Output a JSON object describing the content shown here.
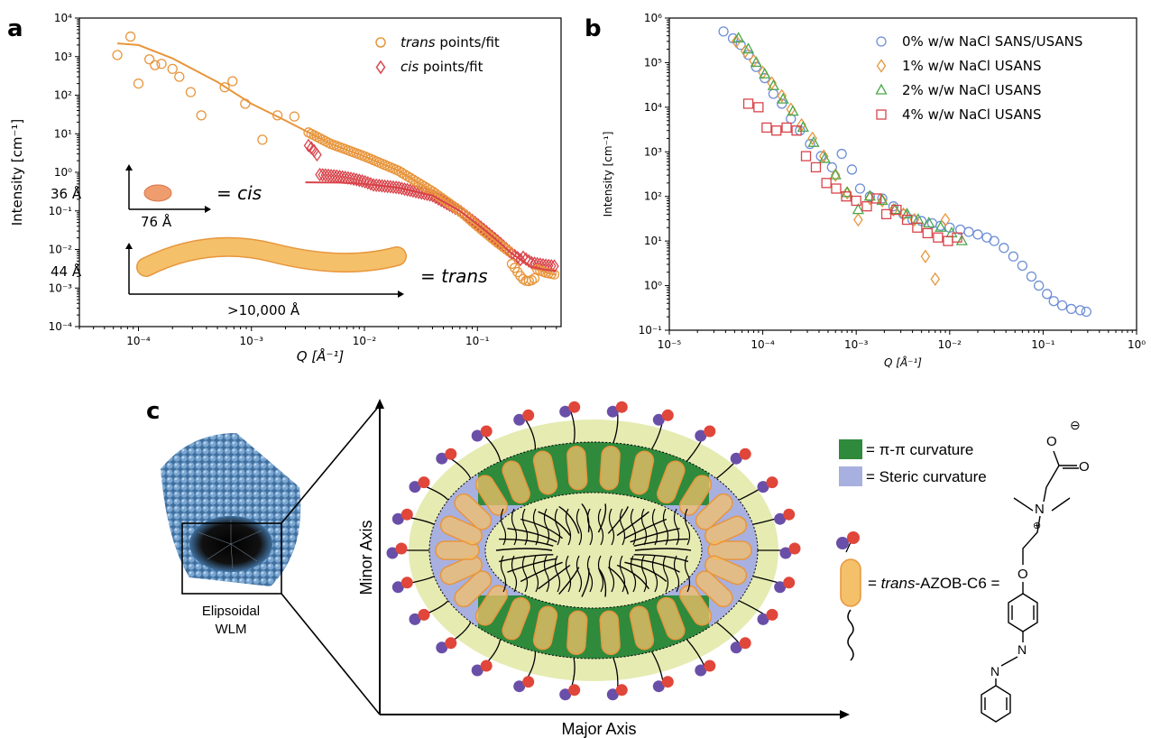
{
  "colors": {
    "trans": "#e8963c",
    "cis": "#d9434a",
    "nacl0": "#6f8fd6",
    "nacl1": "#e8963c",
    "nacl2": "#4aa84a",
    "nacl4": "#d9434a",
    "pi_pi": "#2f8a3c",
    "steric": "#a8b0e0",
    "shell": "#e6ebb2",
    "rod": "#f5c06a"
  },
  "panels": {
    "a": "a",
    "b": "b",
    "c": "c"
  },
  "chart_data": [
    {
      "type": "scatter",
      "panel": "a",
      "xscale": "log",
      "yscale": "log",
      "xlim": [
        3e-05,
        0.55
      ],
      "ylim": [
        0.0001,
        10000.0
      ],
      "xlabel": "Q [Å⁻¹]",
      "ylabel": "Intensity [cm⁻¹]",
      "xticks": [
        "10⁻⁴",
        "10⁻³",
        "10⁻²",
        "10⁻¹"
      ],
      "yticks": [
        "10⁻⁴",
        "10⁻³",
        "10⁻²",
        "10⁻¹",
        "10⁰",
        "10¹",
        "10²",
        "10³",
        "10⁴"
      ],
      "legend_position": "top-right",
      "series": [
        {
          "name": "trans points/fit",
          "marker": "circle",
          "points_x": [
            6.5e-05,
            8.5e-05,
            0.0001,
            0.000125,
            0.00014,
            0.00016,
            0.0002,
            0.00023,
            0.00029,
            0.00036,
            0.00058,
            0.00068,
            0.00088,
            0.00125,
            0.0017,
            0.0024
          ],
          "points_y": [
            1100,
            3300,
            200,
            850,
            600,
            650,
            480,
            300,
            120,
            30,
            160,
            230,
            60,
            7,
            30,
            28
          ],
          "fit_x": [
            6.5e-05,
            0.0001,
            0.0002,
            0.0005,
            0.001,
            0.002,
            0.005,
            0.01,
            0.02,
            0.04,
            0.07,
            0.1,
            0.15,
            0.2,
            0.25,
            0.3,
            0.4,
            0.5
          ],
          "fit_y": [
            2200,
            2000,
            900,
            220,
            60,
            22,
            5.5,
            2.6,
            1.1,
            0.32,
            0.1,
            0.04,
            0.015,
            0.008,
            0.005,
            0.0035,
            0.0025,
            0.0022
          ]
        },
        {
          "name": "cis points/fit",
          "marker": "diamond",
          "fit_x": [
            0.003,
            0.006,
            0.01,
            0.02,
            0.04,
            0.07,
            0.1,
            0.15,
            0.2,
            0.25,
            0.3,
            0.4,
            0.5
          ],
          "fit_y": [
            0.55,
            0.54,
            0.5,
            0.4,
            0.25,
            0.1,
            0.045,
            0.017,
            0.008,
            0.005,
            0.0035,
            0.003,
            0.0028
          ]
        }
      ],
      "insets": {
        "cis": {
          "height": "36 Å",
          "width": "76 Å",
          "label": "= cis"
        },
        "trans": {
          "height": "44 Å",
          "width": ">10,000 Å",
          "label": "= trans"
        }
      }
    },
    {
      "type": "scatter",
      "panel": "b",
      "xscale": "log",
      "yscale": "log",
      "xlim": [
        1e-05,
        1
      ],
      "ylim": [
        0.1,
        1000000.0
      ],
      "xlabel": "Q [Å⁻¹]",
      "ylabel": "Intensity [cm⁻¹]",
      "xticks": [
        "10⁻⁵",
        "10⁻⁴",
        "10⁻³",
        "10⁻²",
        "10⁻¹",
        "10⁰"
      ],
      "yticks": [
        "10⁻¹",
        "10⁰",
        "10¹",
        "10²",
        "10³",
        "10⁴",
        "10⁵",
        "10⁶"
      ],
      "legend_position": "top-right",
      "series": [
        {
          "name": "0% w/w NaCl SANS/USANS",
          "marker": "circle",
          "x": [
            3.8e-05,
            4.8e-05,
            5.8e-05,
            7e-05,
            8.5e-05,
            0.000105,
            0.00013,
            0.00016,
            0.0002,
            0.00025,
            0.00032,
            0.00042,
            0.00055,
            0.0007,
            0.0009,
            0.0011,
            0.0014,
            0.0019,
            0.0025,
            0.0032,
            0.004,
            0.005,
            0.0065,
            0.008,
            0.01,
            0.013,
            0.016,
            0.02,
            0.025,
            0.03,
            0.038,
            0.048,
            0.06,
            0.075,
            0.09,
            0.11,
            0.13,
            0.16,
            0.2,
            0.25,
            0.29
          ],
          "y": [
            500000,
            350000,
            250000,
            150000,
            80000,
            45000,
            20000,
            12000,
            5500,
            3000,
            1500,
            800,
            450,
            900,
            400,
            150,
            100,
            90,
            60,
            40,
            30,
            28,
            25,
            22,
            20,
            18,
            16,
            14,
            12,
            10,
            7,
            4.5,
            2.8,
            1.6,
            1,
            0.65,
            0.45,
            0.36,
            0.3,
            0.28,
            0.26
          ]
        },
        {
          "name": "1% w/w NaCl USANS",
          "marker": "diamond",
          "x": [
            5.2e-05,
            6.5e-05,
            8e-05,
            0.0001,
            0.000125,
            0.00016,
            0.0002,
            0.00026,
            0.00034,
            0.00045,
            0.0006,
            0.0008,
            0.00105,
            0.0014,
            0.0019,
            0.0025,
            0.0032,
            0.0042,
            0.0055,
            0.007,
            0.009
          ],
          "y": [
            300000,
            180000,
            110000,
            60000,
            35000,
            18000,
            9000,
            4000,
            2000,
            800,
            300,
            120,
            30,
            90,
            80,
            50,
            40,
            30,
            4.5,
            1.4,
            30
          ]
        },
        {
          "name": "2% w/w NaCl USANS",
          "marker": "triangle",
          "x": [
            5.5e-05,
            7e-05,
            8.5e-05,
            0.000105,
            0.00013,
            0.000165,
            0.00021,
            0.00027,
            0.00035,
            0.00046,
            0.0006,
            0.0008,
            0.00105,
            0.0014,
            0.0019,
            0.0026,
            0.0035,
            0.0046,
            0.006,
            0.008,
            0.0105,
            0.0135
          ],
          "y": [
            350000,
            200000,
            100000,
            55000,
            30000,
            15000,
            8000,
            3500,
            1600,
            700,
            300,
            120,
            50,
            100,
            80,
            50,
            40,
            30,
            25,
            20,
            15,
            10
          ]
        },
        {
          "name": "4% w/w NaCl USANS",
          "marker": "square",
          "x": [
            7e-05,
            9e-05,
            0.00011,
            0.00014,
            0.00018,
            0.00023,
            0.00029,
            0.00037,
            0.00048,
            0.00061,
            0.00078,
            0.001,
            0.0013,
            0.00165,
            0.0021,
            0.0027,
            0.0035,
            0.0045,
            0.0058,
            0.0075,
            0.0096,
            0.012
          ],
          "y": [
            12000,
            10000,
            3500,
            3000,
            3500,
            3000,
            800,
            450,
            200,
            150,
            100,
            80,
            60,
            90,
            40,
            50,
            30,
            20,
            15,
            12,
            10,
            12
          ]
        }
      ]
    }
  ],
  "panel_c": {
    "wlm_label_1": "Elipsoidal",
    "wlm_label_2": "WLM",
    "minor_axis": "Minor Axis",
    "major_axis": "Major Axis",
    "legend_pi": "= π-π curvature",
    "legend_steric": "= Steric curvature",
    "molecule_label_pre": "= ",
    "molecule_label_italic": "trans",
    "molecule_label_post": "-AZOB-C6 =",
    "charge_plus": "+",
    "charge_minus": "−",
    "charge_plus_circled": "⊕",
    "charge_minus_circled": "⊖",
    "atom_o": "O",
    "atom_n": "N"
  }
}
